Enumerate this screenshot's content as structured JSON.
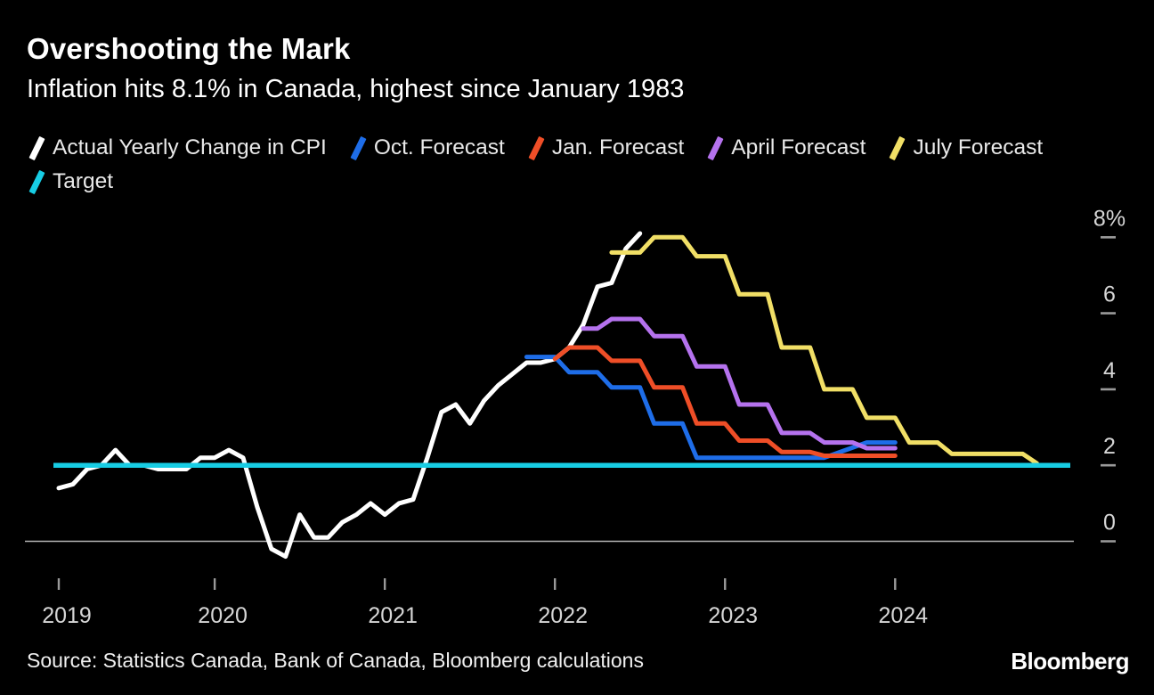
{
  "header": {
    "title": "Overshooting the Mark",
    "subtitle": "Inflation hits 8.1% in Canada, highest since January 1983"
  },
  "legend": {
    "items": [
      {
        "label": "Actual Yearly Change in CPI",
        "color": "#ffffff"
      },
      {
        "label": "Oct. Forecast",
        "color": "#1e6de8"
      },
      {
        "label": "Jan. Forecast",
        "color": "#ef4e27"
      },
      {
        "label": "April Forecast",
        "color": "#b572ee"
      },
      {
        "label": "July Forecast",
        "color": "#f1df66"
      },
      {
        "label": "Target",
        "color": "#17cde4"
      }
    ]
  },
  "chart_data": {
    "type": "line",
    "title": "Overshooting the Mark",
    "subtitle": "Inflation hits 8.1% in Canada, highest since January 1983",
    "x_unit": "months since Jan 2019",
    "xlabel": "",
    "ylabel": "percent",
    "ylim": [
      -0.8,
      8.6
    ],
    "grid": "none",
    "legend_position": "top",
    "x_ticks": {
      "months": [
        0,
        11,
        23,
        35,
        47,
        59
      ],
      "labels": [
        "2019",
        "2020",
        "2021",
        "2022",
        "2023",
        "2024"
      ]
    },
    "y_ticks": {
      "values": [
        0,
        2,
        4,
        6,
        8
      ],
      "labels": [
        "0",
        "2",
        "4",
        "6",
        "8%"
      ]
    },
    "series": [
      {
        "name": "Actual Yearly Change in CPI",
        "color": "#ffffff",
        "kind": "monthly",
        "start_month": 0,
        "values": [
          1.4,
          1.5,
          1.9,
          2.0,
          2.4,
          2.0,
          2.0,
          1.9,
          1.9,
          1.9,
          2.2,
          2.2,
          2.4,
          2.2,
          0.9,
          -0.2,
          -0.4,
          0.7,
          0.1,
          0.1,
          0.5,
          0.7,
          1.0,
          0.7,
          1.0,
          1.1,
          2.2,
          3.4,
          3.6,
          3.1,
          3.7,
          4.1,
          4.4,
          4.7,
          4.7,
          4.8,
          5.1,
          5.7,
          6.7,
          6.8,
          7.7,
          8.1
        ]
      },
      {
        "name": "Oct. Forecast",
        "color": "#1e6de8",
        "kind": "points",
        "points": [
          [
            33,
            4.85
          ],
          [
            35,
            4.85
          ],
          [
            36,
            4.45
          ],
          [
            38,
            4.45
          ],
          [
            39,
            4.05
          ],
          [
            41,
            4.05
          ],
          [
            42,
            3.1
          ],
          [
            44,
            3.1
          ],
          [
            45,
            2.2
          ],
          [
            54,
            2.2
          ],
          [
            57,
            2.6
          ],
          [
            59,
            2.6
          ]
        ]
      },
      {
        "name": "Jan. Forecast",
        "color": "#ef4e27",
        "kind": "points",
        "points": [
          [
            35,
            4.8
          ],
          [
            36,
            5.1
          ],
          [
            38,
            5.1
          ],
          [
            39,
            4.75
          ],
          [
            41,
            4.75
          ],
          [
            42,
            4.05
          ],
          [
            44,
            4.05
          ],
          [
            45,
            3.1
          ],
          [
            47,
            3.1
          ],
          [
            48,
            2.65
          ],
          [
            50,
            2.65
          ],
          [
            51,
            2.35
          ],
          [
            53,
            2.35
          ],
          [
            54,
            2.25
          ],
          [
            59,
            2.25
          ]
        ]
      },
      {
        "name": "April Forecast",
        "color": "#b572ee",
        "kind": "points",
        "points": [
          [
            37,
            5.6
          ],
          [
            38,
            5.6
          ],
          [
            39,
            5.85
          ],
          [
            41,
            5.85
          ],
          [
            42,
            5.4
          ],
          [
            44,
            5.4
          ],
          [
            45,
            4.6
          ],
          [
            47,
            4.6
          ],
          [
            48,
            3.6
          ],
          [
            50,
            3.6
          ],
          [
            51,
            2.85
          ],
          [
            53,
            2.85
          ],
          [
            54,
            2.6
          ],
          [
            56,
            2.6
          ],
          [
            57,
            2.45
          ],
          [
            59,
            2.45
          ]
        ]
      },
      {
        "name": "July Forecast",
        "color": "#f1df66",
        "kind": "points",
        "points": [
          [
            39,
            7.6
          ],
          [
            41,
            7.6
          ],
          [
            42,
            8.0
          ],
          [
            44,
            8.0
          ],
          [
            45,
            7.5
          ],
          [
            47,
            7.5
          ],
          [
            48,
            6.5
          ],
          [
            50,
            6.5
          ],
          [
            51,
            5.1
          ],
          [
            53,
            5.1
          ],
          [
            54,
            4.0
          ],
          [
            56,
            4.0
          ],
          [
            57,
            3.25
          ],
          [
            59,
            3.25
          ],
          [
            60,
            2.6
          ],
          [
            62,
            2.6
          ],
          [
            63,
            2.3
          ],
          [
            68,
            2.3
          ],
          [
            69,
            2.05
          ]
        ]
      },
      {
        "name": "Target",
        "color": "#17cde4",
        "kind": "hline",
        "value": 2.0
      }
    ],
    "annotations": []
  },
  "footer": {
    "source": "Source: Statistics Canada, Bank of Canada, Bloomberg calculations",
    "logo": "Bloomberg"
  }
}
